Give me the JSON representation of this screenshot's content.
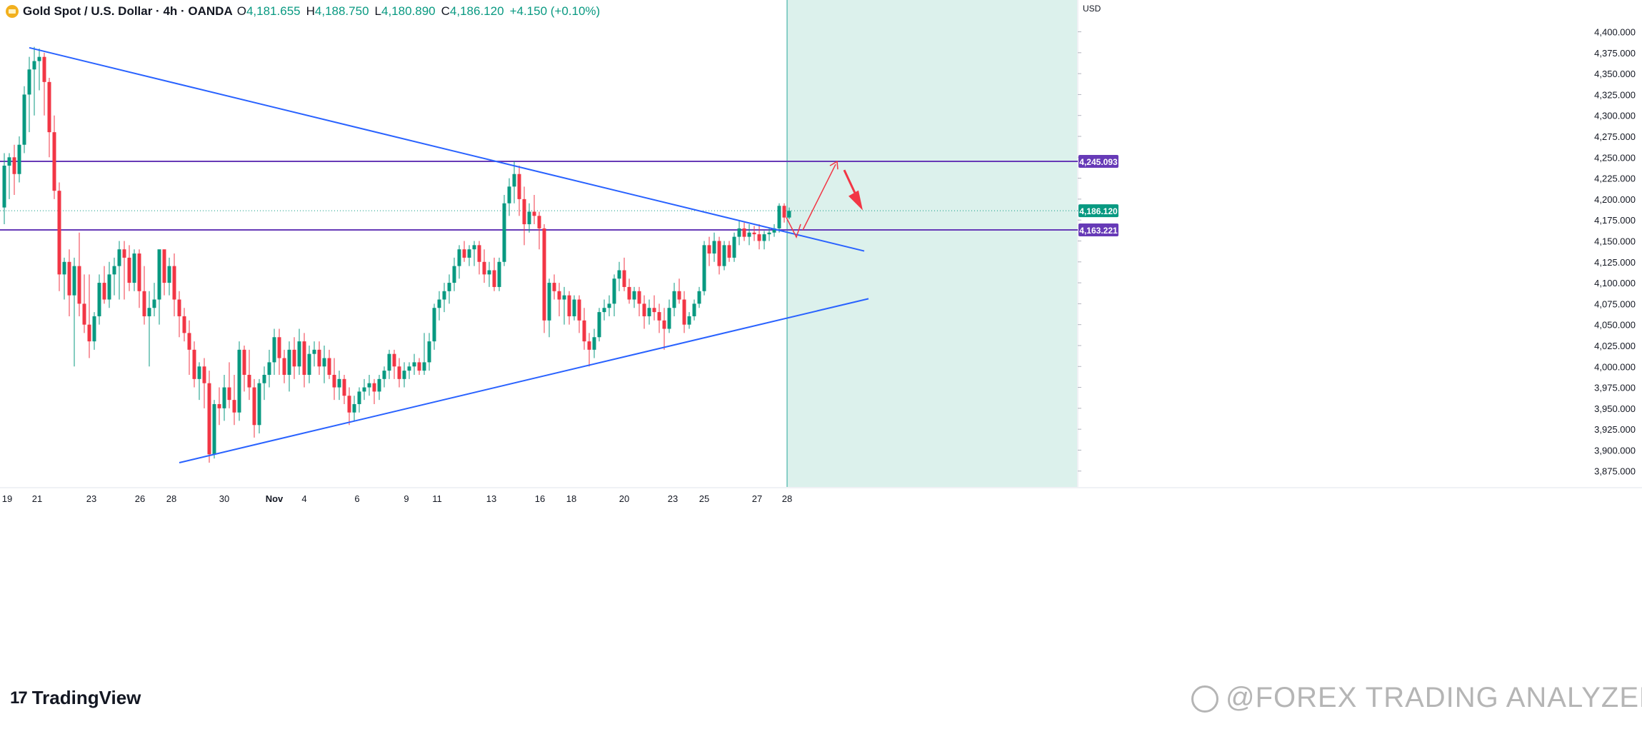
{
  "legend": {
    "symbol_title": "Gold Spot / U.S. Dollar · 4h · OANDA",
    "open_key": "O",
    "open": "4,181.655",
    "high_key": "H",
    "high": "4,188.750",
    "low_key": "L",
    "low": "4,180.890",
    "close_key": "C",
    "close": "4,186.120",
    "change": "+4.150 (+0.10%)"
  },
  "currency": "USD",
  "branding": {
    "logo_text": "TradingView"
  },
  "watermark": "@FOREX TRADING ANALYZER",
  "chart_data": {
    "type": "candlestick",
    "symbol": "Gold Spot / U.S. Dollar",
    "interval": "4h",
    "source": "OANDA",
    "y_range": [
      3856,
      4438
    ],
    "y_ticks": [
      3875,
      3900,
      3925,
      3950,
      3975,
      4000,
      4025,
      4050,
      4075,
      4100,
      4125,
      4150,
      4175,
      4200,
      4225,
      4250,
      4275,
      4300,
      4325,
      4350,
      4375,
      4400
    ],
    "x_labels": [
      "19",
      "21",
      "23",
      "26",
      "28",
      "30",
      "Nov",
      "4",
      "6",
      "9",
      "11",
      "13",
      "16",
      "18",
      "20",
      "23",
      "25",
      "27",
      "28"
    ],
    "price_badges": [
      {
        "label": "4,245.093",
        "value": 4245.093,
        "color": "#673ab7"
      },
      {
        "label": "4,186.120",
        "value": 4186.12,
        "color": "#089981"
      },
      {
        "label": "4,163.221",
        "value": 4163.221,
        "color": "#673ab7"
      }
    ],
    "horizontal_lines": [
      {
        "value": 4245.093,
        "color": "#673ab7"
      },
      {
        "value": 4163.221,
        "color": "#673ab7"
      },
      {
        "value": 4186.12,
        "color": "#089981",
        "style": "dotted"
      }
    ],
    "trendlines": [
      {
        "from": [
          "Oct 20",
          4381
        ],
        "to": [
          "Nov 27",
          4138
        ],
        "color": "#2962ff"
      },
      {
        "from": [
          "Oct 28",
          3885
        ],
        "to": [
          "Nov 28",
          4081
        ],
        "color": "#2962ff"
      }
    ],
    "projection": [
      4163,
      4245,
      4190
    ],
    "colors": {
      "up": "#089981",
      "down": "#f23645",
      "forecast_zone": "#d6eee9"
    },
    "candles": [
      [
        4190,
        4255,
        4170,
        4240
      ],
      [
        4240,
        4255,
        4200,
        4250
      ],
      [
        4250,
        4265,
        4205,
        4230
      ],
      [
        4230,
        4275,
        4220,
        4265
      ],
      [
        4265,
        4335,
        4255,
        4325
      ],
      [
        4325,
        4370,
        4280,
        4355
      ],
      [
        4355,
        4382,
        4300,
        4365
      ],
      [
        4365,
        4380,
        4330,
        4370
      ],
      [
        4370,
        4375,
        4300,
        4340
      ],
      [
        4340,
        4345,
        4250,
        4280
      ],
      [
        4280,
        4300,
        4200,
        4210
      ],
      [
        4210,
        4220,
        4090,
        4110
      ],
      [
        4110,
        4130,
        4080,
        4125
      ],
      [
        4125,
        4140,
        4060,
        4085
      ],
      [
        4085,
        4130,
        4000,
        4120
      ],
      [
        4120,
        4160,
        4060,
        4075
      ],
      [
        4075,
        4110,
        4040,
        4050
      ],
      [
        4050,
        4110,
        4010,
        4030
      ],
      [
        4030,
        4065,
        4020,
        4060
      ],
      [
        4060,
        4110,
        4050,
        4100
      ],
      [
        4100,
        4120,
        4075,
        4080
      ],
      [
        4080,
        4125,
        4070,
        4110
      ],
      [
        4110,
        4130,
        4085,
        4120
      ],
      [
        4120,
        4150,
        4080,
        4140
      ],
      [
        4140,
        4150,
        4080,
        4130
      ],
      [
        4130,
        4145,
        4090,
        4100
      ],
      [
        4100,
        4140,
        4090,
        4135
      ],
      [
        4135,
        4140,
        4070,
        4090
      ],
      [
        4090,
        4120,
        4050,
        4060
      ],
      [
        4060,
        4090,
        4000,
        4070
      ],
      [
        4070,
        4100,
        4060,
        4080
      ],
      [
        4080,
        4135,
        4050,
        4140
      ],
      [
        4140,
        4135,
        4085,
        4100
      ],
      [
        4100,
        4130,
        4085,
        4120
      ],
      [
        4120,
        4135,
        4060,
        4080
      ],
      [
        4080,
        4090,
        4035,
        4060
      ],
      [
        4060,
        4070,
        4030,
        4040
      ],
      [
        4040,
        4055,
        3990,
        4020
      ],
      [
        4020,
        4030,
        3975,
        3985
      ],
      [
        3985,
        4005,
        3960,
        4000
      ],
      [
        4000,
        4010,
        3950,
        3980
      ],
      [
        3980,
        3995,
        3885,
        3895
      ],
      [
        3895,
        3960,
        3890,
        3955
      ],
      [
        3955,
        3975,
        3930,
        3950
      ],
      [
        3950,
        3990,
        3935,
        3975
      ],
      [
        3975,
        4005,
        3950,
        3960
      ],
      [
        3960,
        3990,
        3930,
        3945
      ],
      [
        3945,
        4030,
        3935,
        4020
      ],
      [
        4020,
        4025,
        3970,
        3990
      ],
      [
        3990,
        4020,
        3960,
        3975
      ],
      [
        3975,
        3985,
        3915,
        3930
      ],
      [
        3930,
        3985,
        3920,
        3980
      ],
      [
        3980,
        4000,
        3960,
        3990
      ],
      [
        3990,
        4020,
        3975,
        4005
      ],
      [
        4005,
        4045,
        3990,
        4035
      ],
      [
        4035,
        4045,
        3990,
        4010
      ],
      [
        4010,
        4020,
        3980,
        3990
      ],
      [
        3990,
        4030,
        3970,
        4020
      ],
      [
        4020,
        4035,
        3985,
        4000
      ],
      [
        4000,
        4045,
        3990,
        4030
      ],
      [
        4030,
        4040,
        3975,
        3990
      ],
      [
        3990,
        4025,
        3980,
        4015
      ],
      [
        4015,
        4030,
        4000,
        4020
      ],
      [
        4020,
        4030,
        3990,
        4000
      ],
      [
        4000,
        4025,
        3980,
        4010
      ],
      [
        4010,
        4020,
        3985,
        3990
      ],
      [
        3990,
        4010,
        3960,
        3975
      ],
      [
        3975,
        3995,
        3960,
        3985
      ],
      [
        3985,
        3990,
        3955,
        3965
      ],
      [
        3965,
        3975,
        3930,
        3945
      ],
      [
        3945,
        3965,
        3935,
        3955
      ],
      [
        3955,
        3975,
        3945,
        3970
      ],
      [
        3970,
        3985,
        3960,
        3975
      ],
      [
        3975,
        3990,
        3965,
        3980
      ],
      [
        3980,
        3985,
        3955,
        3970
      ],
      [
        3970,
        3990,
        3960,
        3985
      ],
      [
        3985,
        4000,
        3975,
        3995
      ],
      [
        3995,
        4020,
        3985,
        4015
      ],
      [
        4015,
        4020,
        3985,
        4000
      ],
      [
        4000,
        4010,
        3975,
        3985
      ],
      [
        3985,
        4005,
        3975,
        3995
      ],
      [
        3995,
        4005,
        3985,
        4000
      ],
      [
        4000,
        4015,
        3990,
        4005
      ],
      [
        4005,
        4010,
        3990,
        3995
      ],
      [
        3995,
        4040,
        3990,
        4005
      ],
      [
        4005,
        4040,
        3995,
        4030
      ],
      [
        4030,
        4075,
        4020,
        4070
      ],
      [
        4070,
        4090,
        4055,
        4080
      ],
      [
        4080,
        4100,
        4065,
        4090
      ],
      [
        4090,
        4110,
        4075,
        4100
      ],
      [
        4100,
        4130,
        4090,
        4120
      ],
      [
        4120,
        4145,
        4105,
        4140
      ],
      [
        4140,
        4150,
        4125,
        4130
      ],
      [
        4130,
        4145,
        4120,
        4140
      ],
      [
        4140,
        4150,
        4120,
        4145
      ],
      [
        4145,
        4150,
        4110,
        4125
      ],
      [
        4125,
        4140,
        4100,
        4110
      ],
      [
        4110,
        4125,
        4095,
        4115
      ],
      [
        4115,
        4130,
        4090,
        4095
      ],
      [
        4095,
        4130,
        4090,
        4125
      ],
      [
        4125,
        4205,
        4120,
        4195
      ],
      [
        4195,
        4225,
        4180,
        4215
      ],
      [
        4215,
        4245,
        4195,
        4230
      ],
      [
        4230,
        4240,
        4180,
        4200
      ],
      [
        4200,
        4215,
        4145,
        4170
      ],
      [
        4170,
        4195,
        4160,
        4185
      ],
      [
        4185,
        4205,
        4170,
        4180
      ],
      [
        4180,
        4185,
        4140,
        4165
      ],
      [
        4165,
        4170,
        4040,
        4055
      ],
      [
        4055,
        4105,
        4035,
        4100
      ],
      [
        4100,
        4110,
        4080,
        4090
      ],
      [
        4090,
        4100,
        4060,
        4080
      ],
      [
        4080,
        4095,
        4050,
        4085
      ],
      [
        4085,
        4090,
        4050,
        4060
      ],
      [
        4060,
        4085,
        4055,
        4080
      ],
      [
        4080,
        4085,
        4040,
        4055
      ],
      [
        4055,
        4070,
        4020,
        4030
      ],
      [
        4030,
        4040,
        4000,
        4020
      ],
      [
        4020,
        4045,
        4010,
        4035
      ],
      [
        4035,
        4070,
        4030,
        4065
      ],
      [
        4065,
        4080,
        4055,
        4070
      ],
      [
        4070,
        4085,
        4060,
        4075
      ],
      [
        4075,
        4110,
        4060,
        4105
      ],
      [
        4105,
        4125,
        4090,
        4115
      ],
      [
        4115,
        4130,
        4090,
        4095
      ],
      [
        4095,
        4105,
        4075,
        4080
      ],
      [
        4080,
        4095,
        4070,
        4090
      ],
      [
        4090,
        4095,
        4060,
        4075
      ],
      [
        4075,
        4085,
        4045,
        4060
      ],
      [
        4060,
        4080,
        4050,
        4070
      ],
      [
        4070,
        4085,
        4055,
        4065
      ],
      [
        4065,
        4075,
        4040,
        4055
      ],
      [
        4055,
        4070,
        4020,
        4045
      ],
      [
        4045,
        4080,
        4040,
        4070
      ],
      [
        4070,
        4100,
        4060,
        4090
      ],
      [
        4090,
        4105,
        4075,
        4080
      ],
      [
        4080,
        4090,
        4040,
        4050
      ],
      [
        4050,
        4065,
        4045,
        4060
      ],
      [
        4060,
        4080,
        4055,
        4075
      ],
      [
        4075,
        4095,
        4070,
        4090
      ],
      [
        4090,
        4150,
        4085,
        4145
      ],
      [
        4145,
        4155,
        4120,
        4135
      ],
      [
        4135,
        4160,
        4125,
        4150
      ],
      [
        4150,
        4155,
        4110,
        4120
      ],
      [
        4120,
        4150,
        4115,
        4145
      ],
      [
        4145,
        4150,
        4125,
        4130
      ],
      [
        4130,
        4160,
        4125,
        4155
      ],
      [
        4155,
        4175,
        4145,
        4165
      ],
      [
        4165,
        4172,
        4150,
        4155
      ],
      [
        4155,
        4170,
        4145,
        4160
      ],
      [
        4160,
        4168,
        4150,
        4158
      ],
      [
        4158,
        4170,
        4140,
        4150
      ],
      [
        4150,
        4162,
        4140,
        4158
      ],
      [
        4158,
        4165,
        4150,
        4160
      ],
      [
        4160,
        4170,
        4155,
        4165
      ],
      [
        4165,
        4195,
        4160,
        4192
      ],
      [
        4192,
        4195,
        4172,
        4178
      ],
      [
        4178,
        4190,
        4176,
        4186
      ]
    ]
  }
}
